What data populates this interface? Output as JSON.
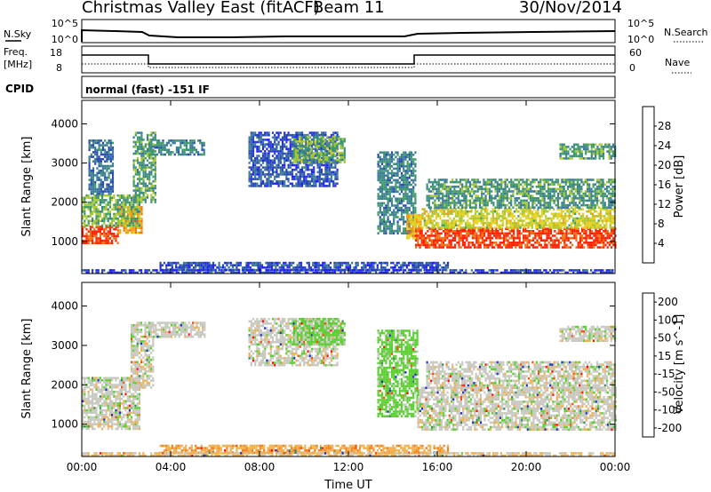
{
  "header": {
    "title": "Christmas Valley East (fitACF)",
    "beam": "Beam 11",
    "date": "30/Nov/2014"
  },
  "strips": {
    "nsky_label": "N.Sky",
    "nsearch_label": "N.Search",
    "noise_ticks": [
      "10^5",
      "10^0"
    ],
    "freq_label_line1": "Freq.",
    "freq_label_line2": "[MHz]",
    "freq_ticks": [
      "18",
      "8"
    ],
    "nave_label": "Nave",
    "nave_ticks": [
      "60",
      "0"
    ],
    "cpid_label": "CPID",
    "cpid_text": "normal (fast) -151 IF"
  },
  "chart_data": [
    {
      "type": "heatmap",
      "panel": "power",
      "xlabel": "",
      "ylabel": "Slant Range [km]",
      "x_ticks": [
        "00:00",
        "04:00",
        "08:00",
        "12:00",
        "16:00",
        "20:00",
        "00:00"
      ],
      "y_ticks": [
        "1000",
        "2000",
        "3000",
        "4000"
      ],
      "xlim_hours": [
        0,
        24
      ],
      "ylim_km": [
        180,
        4600
      ],
      "colorbar_label": "Power [dB]",
      "colorbar_ticks": [
        "28",
        "24",
        "20",
        "16",
        "12",
        "8",
        "4"
      ],
      "colorbar_range_db": [
        0,
        32
      ],
      "colors": [
        "#2020ff",
        "#2a49b0",
        "#3b7a9a",
        "#3f9a6a",
        "#a8c830",
        "#e8d020",
        "#f0a010",
        "#f07010",
        "#ff2000"
      ],
      "regions": [
        {
          "x": [
            0.0,
            1.6
          ],
          "y": [
            950,
            1400
          ],
          "value": 30
        },
        {
          "x": [
            1.6,
            2.7
          ],
          "y": [
            1200,
            1900
          ],
          "value": 24
        },
        {
          "x": [
            0.0,
            2.6
          ],
          "y": [
            1400,
            2200
          ],
          "value": 14
        },
        {
          "x": [
            0.3,
            1.4
          ],
          "y": [
            2200,
            3600
          ],
          "value": 8
        },
        {
          "x": [
            2.3,
            3.3
          ],
          "y": [
            2000,
            3800
          ],
          "value": 12
        },
        {
          "x": [
            3.0,
            5.5
          ],
          "y": [
            3200,
            3600
          ],
          "value": 10
        },
        {
          "x": [
            7.5,
            11.5
          ],
          "y": [
            2400,
            3800
          ],
          "value": 6
        },
        {
          "x": [
            9.5,
            11.8
          ],
          "y": [
            3000,
            3700
          ],
          "value": 14
        },
        {
          "x": [
            13.3,
            15.0
          ],
          "y": [
            1200,
            3300
          ],
          "value": 10
        },
        {
          "x": [
            14.6,
            15.3
          ],
          "y": [
            1100,
            1700
          ],
          "value": 22
        },
        {
          "x": [
            15.0,
            24.0
          ],
          "y": [
            850,
            1350
          ],
          "value": 30
        },
        {
          "x": [
            15.3,
            24.0
          ],
          "y": [
            1350,
            1850
          ],
          "value": 18
        },
        {
          "x": [
            15.5,
            24.0
          ],
          "y": [
            1850,
            2600
          ],
          "value": 12
        },
        {
          "x": [
            21.5,
            24.0
          ],
          "y": [
            3100,
            3500
          ],
          "value": 12
        },
        {
          "x": [
            3.5,
            16.5
          ],
          "y": [
            280,
            480
          ],
          "value": 5
        },
        {
          "x": [
            0.0,
            24.0
          ],
          "y": [
            200,
            290
          ],
          "value": 4
        }
      ]
    },
    {
      "type": "heatmap",
      "panel": "velocity",
      "xlabel": "Time UT",
      "ylabel": "Slant Range [km]",
      "x_ticks": [
        "00:00",
        "04:00",
        "08:00",
        "12:00",
        "16:00",
        "20:00",
        "00:00"
      ],
      "y_ticks": [
        "1000",
        "2000",
        "3000",
        "4000"
      ],
      "xlim_hours": [
        0,
        24
      ],
      "ylim_km": [
        180,
        4600
      ],
      "colorbar_label": "Velocity [m s^-1]",
      "colorbar_ticks": [
        "200",
        "100",
        "50",
        "15",
        "-15",
        "-50",
        "-100",
        "-200"
      ],
      "colors": [
        "#2030c0",
        "#3a8a6a",
        "#5ad030",
        "#c8c8c0",
        "#f0b050",
        "#f08020",
        "#f05010",
        "#ff1010"
      ],
      "regions": [
        {
          "x": [
            0.0,
            2.6
          ],
          "y": [
            900,
            2200
          ],
          "value": 0
        },
        {
          "x": [
            2.2,
            3.2
          ],
          "y": [
            1900,
            3600
          ],
          "value": 0
        },
        {
          "x": [
            3.2,
            5.5
          ],
          "y": [
            3200,
            3600
          ],
          "value": 0
        },
        {
          "x": [
            7.5,
            11.5
          ],
          "y": [
            2500,
            3700
          ],
          "value": 0
        },
        {
          "x": [
            9.5,
            11.8
          ],
          "y": [
            3000,
            3700
          ],
          "value": 25
        },
        {
          "x": [
            13.3,
            15.1
          ],
          "y": [
            1200,
            3400
          ],
          "value": 30
        },
        {
          "x": [
            15.1,
            24.0
          ],
          "y": [
            850,
            1950
          ],
          "value": 0
        },
        {
          "x": [
            15.5,
            24.0
          ],
          "y": [
            1950,
            2600
          ],
          "value": 0
        },
        {
          "x": [
            21.5,
            24.0
          ],
          "y": [
            3100,
            3500
          ],
          "value": 0
        },
        {
          "x": [
            3.5,
            16.5
          ],
          "y": [
            280,
            480
          ],
          "value": -40
        },
        {
          "x": [
            0.0,
            24.0
          ],
          "y": [
            200,
            290
          ],
          "value": -20
        }
      ]
    }
  ]
}
